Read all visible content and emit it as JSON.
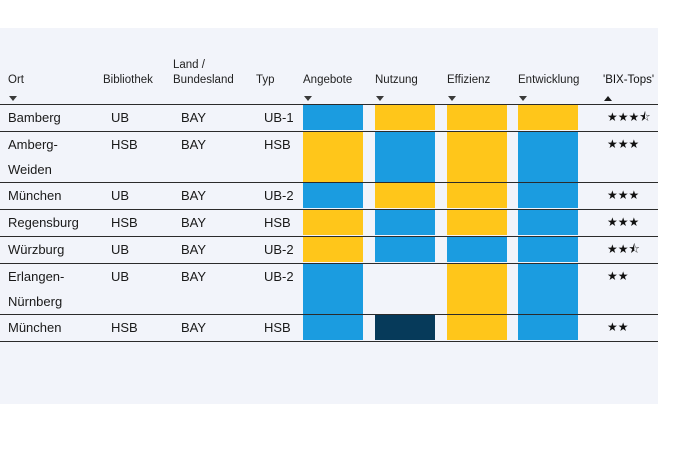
{
  "colors": {
    "blue": "#1b9ce0",
    "yellow": "#ffc61a",
    "dark": "#063a5a",
    "white": "#f2f4fa"
  },
  "headers": {
    "ort": "Ort",
    "bibliothek": "Bibliothek",
    "land": "Land /\nBundesland",
    "typ": "Typ",
    "angebote": "Angebote",
    "nutzung": "Nutzung",
    "effizienz": "Effizienz",
    "entwicklung": "Entwicklung",
    "bix_tops": "'BIX-Tops'"
  },
  "rows": [
    {
      "ort": "Bamberg",
      "bibliothek": "UB",
      "land": "BAY",
      "typ": "UB-1",
      "angebote": "blue",
      "nutzung": "yellow",
      "effizienz": "yellow",
      "entwicklung": "yellow",
      "stars": "★★★⯪"
    },
    {
      "ort": "Amberg-\nWeiden",
      "bibliothek": "HSB",
      "land": "BAY",
      "typ": "HSB",
      "angebote": "yellow",
      "nutzung": "blue",
      "effizienz": "yellow",
      "entwicklung": "blue",
      "stars": "★★★"
    },
    {
      "ort": "München",
      "bibliothek": "UB",
      "land": "BAY",
      "typ": "UB-2",
      "angebote": "blue",
      "nutzung": "yellow",
      "effizienz": "yellow",
      "entwicklung": "blue",
      "stars": "★★★"
    },
    {
      "ort": "Regensburg",
      "bibliothek": "HSB",
      "land": "BAY",
      "typ": "HSB",
      "angebote": "yellow",
      "nutzung": "blue",
      "effizienz": "yellow",
      "entwicklung": "blue",
      "stars": "★★★"
    },
    {
      "ort": "Würzburg",
      "bibliothek": "UB",
      "land": "BAY",
      "typ": "UB-2",
      "angebote": "yellow",
      "nutzung": "blue",
      "effizienz": "blue",
      "entwicklung": "blue",
      "stars": "★★⯪"
    },
    {
      "ort": "Erlangen-\nNürnberg",
      "bibliothek": "UB",
      "land": "BAY",
      "typ": "UB-2",
      "angebote": "blue",
      "nutzung": "white",
      "effizienz": "yellow",
      "entwicklung": "blue",
      "stars": "★★"
    },
    {
      "ort": "München",
      "bibliothek": "HSB",
      "land": "BAY",
      "typ": "HSB",
      "angebote": "blue",
      "nutzung": "dark",
      "effizienz": "yellow",
      "entwicklung": "blue",
      "stars": "★★"
    }
  ]
}
